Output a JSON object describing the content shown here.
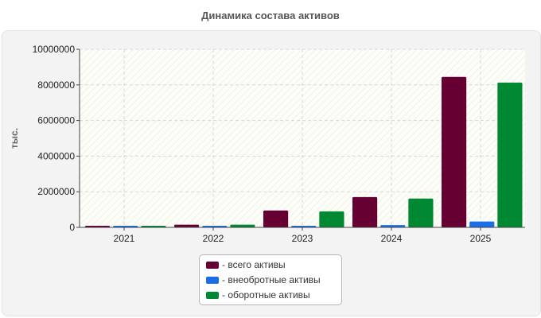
{
  "chart_data": {
    "type": "bar",
    "title": "Динамика состава активов",
    "ylabel": "тыс.",
    "xlabel": "",
    "categories": [
      "2021",
      "2022",
      "2023",
      "2024",
      "2025"
    ],
    "ylim": [
      0,
      10000000
    ],
    "yticks": [
      0,
      2000000,
      4000000,
      6000000,
      8000000,
      10000000
    ],
    "ytick_labels": [
      "0",
      "2000000",
      "4000000",
      "6000000",
      "8000000",
      "10000000"
    ],
    "grid": true,
    "legend_position": "bottom",
    "series": [
      {
        "name": "- всего активы",
        "color": "#660033",
        "values": [
          60000,
          150000,
          950000,
          1700000,
          8450000
        ]
      },
      {
        "name": "- внеобротные активы",
        "color": "#1a6fe8",
        "values": [
          30000,
          20000,
          40000,
          130000,
          330000
        ]
      },
      {
        "name": "- оборотные активы",
        "color": "#008833",
        "values": [
          40000,
          150000,
          900000,
          1620000,
          8130000
        ]
      }
    ]
  }
}
